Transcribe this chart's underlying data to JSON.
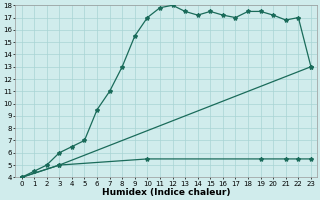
{
  "xlabel": "Humidex (Indice chaleur)",
  "line1_x": [
    0,
    1,
    2,
    3,
    4,
    5,
    6,
    7,
    8,
    9,
    10,
    11,
    12,
    13,
    14,
    15,
    16,
    17,
    18,
    19,
    20,
    21,
    22,
    23
  ],
  "line1_y": [
    4,
    4.5,
    5.0,
    6.0,
    6.5,
    7.0,
    9.5,
    11.0,
    13.0,
    15.5,
    17.0,
    17.8,
    18.0,
    17.5,
    17.2,
    17.5,
    17.2,
    17.0,
    17.5,
    17.5,
    17.2,
    16.8,
    17.0,
    13.0
  ],
  "line2_x": [
    0,
    3,
    23
  ],
  "line2_y": [
    4,
    5.0,
    13.0
  ],
  "line3_x": [
    0,
    3,
    10,
    19,
    21,
    22,
    23
  ],
  "line3_y": [
    4,
    5.0,
    5.5,
    5.5,
    5.5,
    5.5,
    5.5
  ],
  "color": "#1a6b5a",
  "bg_color": "#d0ecec",
  "grid_color": "#a8d4d4",
  "xlim": [
    -0.5,
    23.5
  ],
  "ylim": [
    4,
    18
  ],
  "yticks": [
    4,
    5,
    6,
    7,
    8,
    9,
    10,
    11,
    12,
    13,
    14,
    15,
    16,
    17,
    18
  ],
  "xticks": [
    0,
    1,
    2,
    3,
    4,
    5,
    6,
    7,
    8,
    9,
    10,
    11,
    12,
    13,
    14,
    15,
    16,
    17,
    18,
    19,
    20,
    21,
    22,
    23
  ],
  "tick_fontsize": 5,
  "label_fontsize": 6.5
}
